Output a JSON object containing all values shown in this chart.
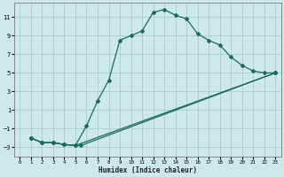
{
  "xlabel": "Humidex (Indice chaleur)",
  "bg_color": "#cce8e8",
  "grid_color": "#aacccc",
  "line_color": "#1e6b5e",
  "xlim": [
    -0.5,
    23.5
  ],
  "ylim": [
    -4,
    12.5
  ],
  "xticks": [
    0,
    1,
    2,
    3,
    4,
    5,
    6,
    7,
    8,
    9,
    10,
    11,
    12,
    13,
    14,
    15,
    16,
    17,
    18,
    19,
    20,
    21,
    22,
    23
  ],
  "yticks": [
    -3,
    -1,
    1,
    3,
    5,
    7,
    9,
    11
  ],
  "line1_x": [
    1,
    2,
    3,
    4,
    5,
    6,
    7,
    8,
    9,
    10,
    11,
    12,
    13,
    14,
    15,
    16,
    17,
    18,
    19,
    20,
    21,
    22,
    23
  ],
  "line1_y": [
    -2.0,
    -2.5,
    -2.5,
    -2.7,
    -2.8,
    -0.7,
    2.0,
    4.2,
    8.5,
    9.0,
    9.5,
    11.5,
    11.8,
    11.2,
    10.8,
    9.2,
    8.5,
    8.0,
    6.7,
    5.8,
    5.2,
    5.0,
    5.0
  ],
  "line2_x": [
    1,
    2,
    3,
    4,
    5,
    5.5,
    23
  ],
  "line2_y": [
    -2.0,
    -2.5,
    -2.5,
    -2.7,
    -2.8,
    -2.8,
    5.0
  ],
  "line3_x": [
    1,
    2,
    3,
    4,
    5,
    23
  ],
  "line3_y": [
    -2.0,
    -2.5,
    -2.5,
    -2.7,
    -2.8,
    5.0
  ]
}
